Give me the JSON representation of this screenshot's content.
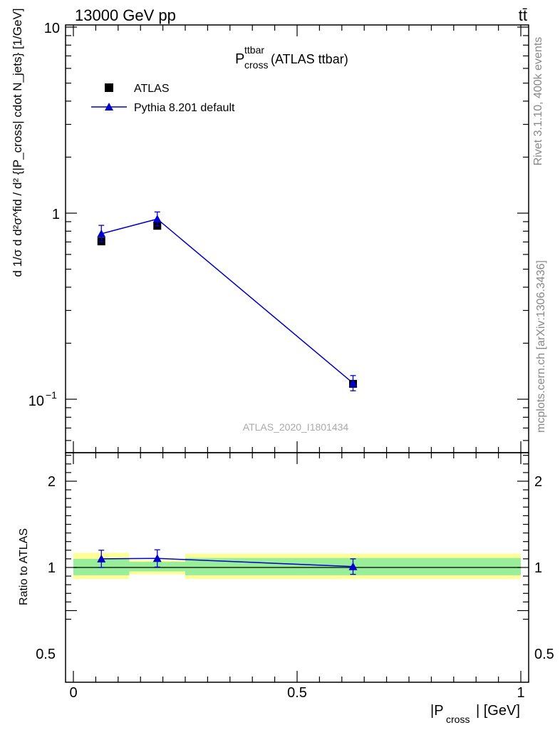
{
  "header": {
    "left": "13000 GeV pp",
    "right": "tt̄"
  },
  "side_labels": {
    "rivet": "Rivet 3.1.10,  400k events",
    "site": "mcplots.cern.ch [arXiv:1306.3436]"
  },
  "plot_title": {
    "main": "P",
    "sup": "ttbar",
    "sub": "cross",
    "rest": " (ATLAS ttbar)"
  },
  "watermark": "ATLAS_2020_I1801434",
  "chart_data": [
    {
      "type": "scatter",
      "panel": "main",
      "ylabel": "d 1/σ d d²σ^fid / d² {|P_cross| cdot N_jets} [1/GeV]",
      "yscale": "log",
      "ylim": [
        0.06,
        10
      ],
      "y_ticks": [
        {
          "value": 0.1,
          "base": "10",
          "exp": "−1"
        },
        {
          "value": 1,
          "base": "1",
          "exp": ""
        },
        {
          "value": 10,
          "base": "10",
          "exp": ""
        }
      ],
      "xlim": [
        -0.02,
        1.02
      ],
      "legend_position": "top-left",
      "series": [
        {
          "name": "ATLAS",
          "marker": "square",
          "color": "#000000",
          "x": [
            0.0625,
            0.1875,
            0.625
          ],
          "y": [
            0.705,
            0.855,
            0.121
          ],
          "yerr": [
            0.015,
            0.018,
            0.006
          ]
        },
        {
          "name": "Pythia 8.201 default",
          "marker": "triangle",
          "color": "#0000cc",
          "x": [
            0.0625,
            0.1875,
            0.625
          ],
          "y": [
            0.775,
            0.93,
            0.122
          ],
          "yerr_up": [
            0.085,
            0.085,
            0.012
          ],
          "yerr_down": [
            0.075,
            0.075,
            0.011
          ]
        }
      ]
    },
    {
      "type": "scatter",
      "panel": "ratio",
      "ylabel": "Ratio to ATLAS",
      "xlabel_main": "|P",
      "xlabel_sub": "cross",
      "xlabel_rest": "| [GeV]",
      "ylim": [
        0.4,
        2.4
      ],
      "y_ticks": [
        {
          "value": 0.5,
          "label": "0.5"
        },
        {
          "value": 1,
          "label": "1"
        },
        {
          "value": 2,
          "label": "2"
        }
      ],
      "xlim": [
        -0.02,
        1.02
      ],
      "x_ticks": [
        {
          "value": 0,
          "label": "0"
        },
        {
          "value": 0.5,
          "label": "0.5"
        },
        {
          "value": 1,
          "label": "1"
        }
      ],
      "bands": [
        {
          "x0": 0.0,
          "x1": 0.125,
          "inner": [
            0.91,
            1.1
          ],
          "outer": [
            0.865,
            1.17
          ]
        },
        {
          "x0": 0.125,
          "x1": 0.25,
          "inner": [
            0.955,
            1.065
          ],
          "outer": [
            0.92,
            1.085
          ]
        },
        {
          "x0": 0.25,
          "x1": 1.0,
          "inner": [
            0.91,
            1.11
          ],
          "outer": [
            0.865,
            1.16
          ]
        }
      ],
      "band_colors": {
        "inner": "#99ee99",
        "outer": "#ffff99"
      },
      "series": [
        {
          "name": "Pythia 8.201 default",
          "color": "#0000cc",
          "x": [
            0.0625,
            0.1875,
            0.625
          ],
          "y": [
            1.1,
            1.105,
            1.01
          ],
          "yerr": [
            0.1,
            0.1,
            0.09
          ]
        }
      ]
    }
  ]
}
